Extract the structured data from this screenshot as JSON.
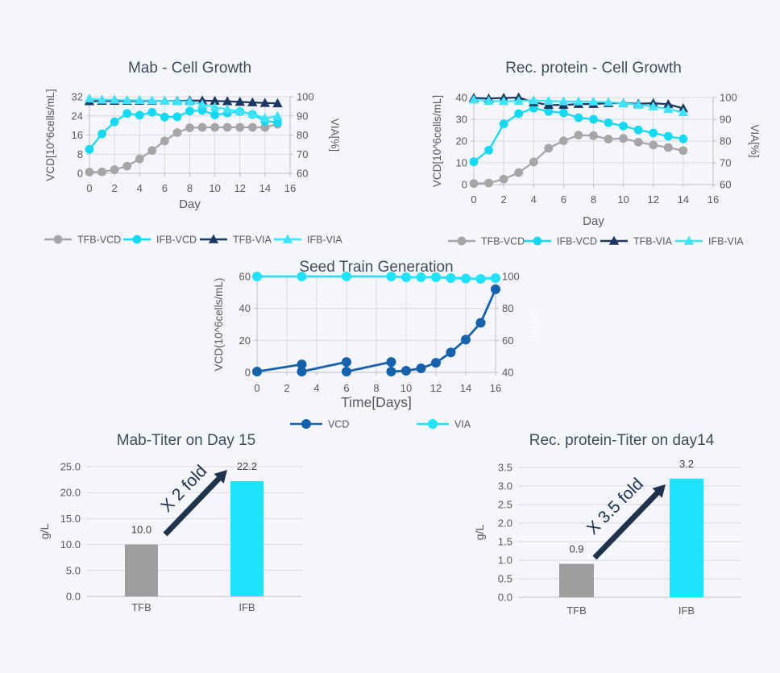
{
  "page": {
    "background_color": "#f5f6fb"
  },
  "colors": {
    "tfb_gray": "#A6A6A6",
    "ifb_cyan": "#14D9F3",
    "via_cyan": "#3FE2F8",
    "via_navy": "#1C3760",
    "vcd_blue": "#1661AB",
    "bar_gray": "#9E9E9E",
    "bar_cyan": "#1FE2FC",
    "arrow_navy": "#20334E",
    "title_text": "#3F4C5C",
    "tick_text": "#595959",
    "value_text": "#404040",
    "grid": "#D9D9DE",
    "axis": "#BFBFC6",
    "white_label": "#FFFFFF"
  },
  "chart_data": [
    {
      "id": "mab-growth",
      "type": "line",
      "title": "Mab - Cell Growth",
      "xlabel": "Day",
      "ylabel_left": "VCD[10^6cells/mL]",
      "ylabel_right": "VIA[%]",
      "xlim": [
        0,
        16
      ],
      "xticks": [
        0,
        2,
        4,
        6,
        8,
        10,
        12,
        14,
        16
      ],
      "ylim_left": [
        0,
        32
      ],
      "yticks_left": [
        0,
        8,
        16,
        24,
        32
      ],
      "ylim_right": [
        60,
        100
      ],
      "yticks_right": [
        60,
        70,
        80,
        90,
        100
      ],
      "grid": true,
      "legend_position": "bottom",
      "series": [
        {
          "name": "TFB-VCD",
          "axis": "left",
          "marker": "circle",
          "color": "tfb_gray",
          "x": [
            0,
            1,
            2,
            3,
            4,
            5,
            6,
            7,
            8,
            9,
            10,
            11,
            12,
            13,
            14,
            15
          ],
          "values": [
            0.5,
            0.6,
            1.5,
            3.0,
            6.0,
            9.5,
            13.5,
            17.0,
            19.0,
            19.2,
            19.2,
            19.2,
            19.2,
            19.2,
            19.2,
            20.5
          ]
        },
        {
          "name": "IFB-VCD",
          "axis": "left",
          "marker": "circle",
          "color": "ifb_cyan",
          "x": [
            0,
            1,
            2,
            3,
            4,
            5,
            6,
            7,
            8,
            9,
            10,
            11,
            12,
            13,
            14,
            15
          ],
          "values": [
            10.0,
            16.5,
            21.5,
            25.0,
            24.3,
            25.5,
            23.5,
            23.6,
            26.0,
            26.3,
            24.4,
            25.2,
            25.8,
            24.6,
            21.8,
            21.3
          ]
        },
        {
          "name": "TFB-VIA",
          "axis": "right",
          "marker": "triangle",
          "color": "via_navy",
          "x": [
            0,
            1,
            2,
            3,
            4,
            5,
            6,
            7,
            8,
            9,
            10,
            11,
            12,
            13,
            14,
            15
          ],
          "values": [
            97.6,
            97.8,
            97.8,
            97.8,
            97.8,
            97.8,
            97.8,
            97.8,
            98.0,
            98.0,
            97.8,
            97.6,
            97.3,
            97.0,
            96.7,
            96.5
          ]
        },
        {
          "name": "IFB-VIA",
          "axis": "right",
          "marker": "triangle",
          "color": "via_cyan",
          "x": [
            0,
            1,
            2,
            3,
            4,
            5,
            6,
            7,
            8,
            9,
            10,
            11,
            12,
            13,
            14,
            15
          ],
          "values": [
            99.0,
            98.4,
            98.4,
            98.2,
            98.2,
            98.0,
            97.8,
            97.6,
            97.5,
            96.0,
            94.6,
            93.4,
            92.4,
            91.0,
            88.8,
            89.8
          ]
        }
      ]
    },
    {
      "id": "rec-growth",
      "type": "line",
      "title": "Rec. protein - Cell Growth",
      "xlabel": "Day",
      "ylabel_left": "VCD[10^6cells/mL]",
      "ylabel_right": "VIA[%]",
      "xlim": [
        0,
        16
      ],
      "xticks": [
        0,
        2,
        4,
        6,
        8,
        10,
        12,
        14,
        16
      ],
      "ylim_left": [
        0,
        40
      ],
      "yticks_left": [
        0,
        10,
        20,
        30,
        40
      ],
      "ylim_right": [
        60,
        100
      ],
      "yticks_right": [
        60,
        70,
        80,
        90,
        100
      ],
      "grid": true,
      "legend_position": "bottom",
      "series": [
        {
          "name": "TFB-VCD",
          "axis": "left",
          "marker": "circle",
          "color": "tfb_gray",
          "x": [
            0,
            1,
            2,
            3,
            4,
            5,
            6,
            7,
            8,
            9,
            10,
            11,
            12,
            13,
            14
          ],
          "values": [
            0.5,
            0.7,
            2.5,
            5.5,
            10.4,
            16.7,
            20.1,
            22.7,
            22.5,
            20.9,
            21.2,
            19.5,
            18.2,
            17.0,
            15.6
          ]
        },
        {
          "name": "IFB-VCD",
          "axis": "left",
          "marker": "circle",
          "color": "ifb_cyan",
          "x": [
            0,
            1,
            2,
            3,
            4,
            5,
            6,
            7,
            8,
            9,
            10,
            11,
            12,
            13,
            14
          ],
          "values": [
            10.5,
            15.8,
            27.9,
            32.6,
            35.1,
            33.6,
            33.0,
            30.7,
            30.0,
            28.4,
            26.9,
            25.1,
            23.7,
            22.2,
            21.0
          ]
        },
        {
          "name": "TFB-VIA",
          "axis": "right",
          "marker": "triangle",
          "color": "via_navy",
          "x": [
            0,
            1,
            2,
            3,
            4,
            5,
            6,
            7,
            8,
            9,
            10,
            11,
            12,
            13,
            14
          ],
          "values": [
            99.8,
            99.5,
            99.8,
            100.0,
            97.8,
            96.6,
            96.6,
            97.0,
            97.0,
            97.4,
            97.4,
            97.1,
            97.4,
            96.9,
            95.0
          ]
        },
        {
          "name": "IFB-VIA",
          "axis": "right",
          "marker": "triangle",
          "color": "via_cyan",
          "x": [
            0,
            1,
            2,
            3,
            4,
            5,
            6,
            7,
            8,
            9,
            10,
            11,
            12,
            13,
            14
          ],
          "values": [
            99.0,
            98.4,
            98.3,
            98.4,
            98.7,
            98.4,
            98.2,
            98.2,
            98.1,
            97.9,
            97.3,
            96.7,
            95.9,
            94.7,
            93.2
          ]
        }
      ]
    },
    {
      "id": "seed-train",
      "type": "line",
      "title": "Seed Train Generation",
      "xlabel": "Time[Days]",
      "ylabel_left": "VCD(10^6cells/mL)",
      "ylabel_right": "VIA(%)",
      "right_label_white": true,
      "xlim": [
        0,
        16
      ],
      "xticks": [
        0,
        2,
        4,
        6,
        8,
        10,
        12,
        14,
        16
      ],
      "ylim_left": [
        0,
        60
      ],
      "yticks_left": [
        0,
        20,
        40,
        60
      ],
      "ylim_right": [
        40,
        100
      ],
      "yticks_right": [
        40,
        60,
        80,
        100
      ],
      "grid": true,
      "legend_position": "bottom",
      "series": [
        {
          "name": "VCD",
          "axis": "left",
          "marker": "circle",
          "color": "vcd_blue",
          "x": [
            0,
            3,
            3,
            6,
            6,
            9,
            9,
            10,
            11,
            12,
            13,
            14,
            15,
            16
          ],
          "values": [
            0.5,
            5.0,
            0.5,
            6.5,
            0.5,
            6.5,
            0.5,
            1.0,
            2.5,
            6.0,
            12.5,
            20.5,
            31.0,
            52.0
          ]
        },
        {
          "name": "VIA",
          "axis": "right",
          "marker": "circle",
          "color": "bar_cyan",
          "x": [
            0,
            3,
            6,
            9,
            10,
            11,
            12,
            13,
            14,
            15,
            16
          ],
          "values": [
            100,
            100,
            100,
            100,
            99.5,
            99.5,
            99.5,
            99.0,
            98.7,
            98.5,
            99.0
          ]
        }
      ]
    },
    {
      "id": "mab-titer",
      "type": "bar",
      "title": "Mab-Titer on Day 15",
      "ylabel": "g/L",
      "categories": [
        "TFB",
        "IFB"
      ],
      "values": [
        10.0,
        22.2
      ],
      "value_labels": [
        "10.0",
        "22.2"
      ],
      "bar_colors": [
        "bar_gray",
        "bar_cyan"
      ],
      "ylim": [
        0,
        25
      ],
      "yticks": [
        0,
        5,
        10,
        15,
        20,
        25
      ],
      "ytick_labels": [
        "0.0",
        "5.0",
        "10.0",
        "15.0",
        "20.0",
        "25.0"
      ],
      "grid": true,
      "annotation": {
        "text": "X 2 fold"
      }
    },
    {
      "id": "rec-titer",
      "type": "bar",
      "title": "Rec. protein-Titer on day14",
      "ylabel": "g/L",
      "categories": [
        "TFB",
        "IFB"
      ],
      "values": [
        0.9,
        3.2
      ],
      "value_labels": [
        "0.9",
        "3.2"
      ],
      "bar_colors": [
        "bar_gray",
        "bar_cyan"
      ],
      "ylim": [
        0,
        3.5
      ],
      "yticks": [
        0,
        0.5,
        1,
        1.5,
        2,
        2.5,
        3,
        3.5
      ],
      "ytick_labels": [
        "0.0",
        "0.5",
        "1.0",
        "1.5",
        "2.0",
        "2.5",
        "3.0",
        "3.5"
      ],
      "grid": true,
      "annotation": {
        "text": "X 3.5 fold"
      }
    }
  ]
}
